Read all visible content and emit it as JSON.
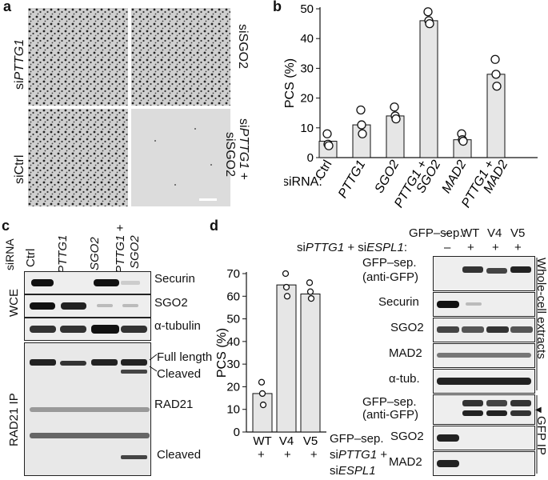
{
  "panel_a": {
    "letter": "a",
    "labels": {
      "top_left": [
        "si",
        "PTTG1"
      ],
      "top_right": "siSGO2",
      "bottom_left": "siCtrl",
      "bottom_right_line1": [
        "si",
        "PTTG1",
        " +"
      ],
      "bottom_right_line2": "siSGO2"
    }
  },
  "panel_b": {
    "letter": "b",
    "sirna_label": "siRNA:",
    "x_labels": [
      {
        "text": "Ctrl",
        "italic": false
      },
      {
        "text": "PTTG1",
        "italic": true
      },
      {
        "text": "SGO2",
        "italic": true
      },
      {
        "text": "PTTG1 +",
        "text2": "SGO2",
        "italic": true
      },
      {
        "text": "MAD2",
        "italic": true
      },
      {
        "text": "PTTG1 +",
        "text2": "MAD2",
        "italic": true
      }
    ]
  },
  "panel_c": {
    "letter": "c",
    "sirna": "siRNA",
    "lanes": [
      {
        "text": "Ctrl",
        "italic": false
      },
      {
        "text": "PTTG1",
        "italic": true
      },
      {
        "text": "SGO2",
        "italic": true
      },
      {
        "text": "PTTG1 +",
        "text2": "SGO2",
        "italic": true
      }
    ],
    "wce": "WCE",
    "ip": "RAD21 IP",
    "bands": [
      "Securin",
      "SGO2",
      "α-tubulin"
    ],
    "ip_labels": [
      "Full length",
      "Cleaved",
      "RAD21",
      "Cleaved"
    ]
  },
  "panel_d": {
    "letter": "d",
    "bar_xlabels": [
      "WT",
      "V4",
      "V5"
    ],
    "plus": "+",
    "legend_line1": "GFP–sep.",
    "legend_line2": [
      "si",
      "PTTG1",
      " +"
    ],
    "legend_line3": [
      "si",
      "ESPL1"
    ],
    "blot_header": {
      "row1_label": "GFP–sep.:",
      "row1_values": [
        "–",
        "WT",
        "V4",
        "V5"
      ],
      "row2_label": [
        "si",
        "PTTG1",
        " + si",
        "ESPL1",
        ":"
      ],
      "row2_values": [
        "–",
        "+",
        "+",
        "+"
      ]
    },
    "wce_bands": [
      "GFP–sep.",
      "(anti-GFP)",
      "Securin",
      "SGO2",
      "MAD2",
      "α-tub."
    ],
    "ip_bands": [
      "GFP–sep.",
      "(anti-GFP)",
      "SGO2",
      "MAD2"
    ],
    "side_wce": "Whole-cell extracts",
    "side_ip": "GFP IP"
  },
  "chart_data": [
    {
      "type": "bar",
      "id": "panel-b",
      "title": "",
      "ylabel": "PCS (%)",
      "xlabel": "siRNA:",
      "ylim": [
        0,
        50
      ],
      "yticks": [
        0,
        10,
        20,
        30,
        40,
        50
      ],
      "categories": [
        "Ctrl",
        "PTTG1",
        "SGO2",
        "PTTG1 + SGO2",
        "MAD2",
        "PTTG1 + MAD2"
      ],
      "values": [
        5.5,
        11,
        14,
        46,
        6,
        28
      ],
      "points": [
        [
          8,
          4.5,
          4
        ],
        [
          16,
          11,
          8
        ],
        [
          17,
          14,
          13
        ],
        [
          49,
          46,
          45
        ],
        [
          8,
          6,
          5.5
        ],
        [
          33,
          28,
          24
        ]
      ]
    },
    {
      "type": "bar",
      "id": "panel-d",
      "title": "",
      "ylabel": "PCS (%)",
      "ylim": [
        0,
        70
      ],
      "yticks": [
        0,
        10,
        20,
        30,
        40,
        50,
        60,
        70
      ],
      "categories": [
        "WT",
        "V4",
        "V5"
      ],
      "values": [
        17,
        65,
        61
      ],
      "points": [
        [
          22,
          17,
          12
        ],
        [
          70,
          64,
          60
        ],
        [
          66,
          62,
          59
        ]
      ]
    }
  ]
}
